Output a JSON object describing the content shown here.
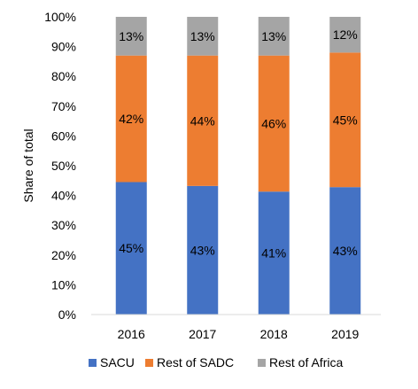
{
  "chart_data": {
    "type": "bar",
    "stacked": true,
    "categories": [
      "2016",
      "2017",
      "2018",
      "2019"
    ],
    "series": [
      {
        "name": "SACU",
        "values": [
          44.5,
          43.2,
          41.3,
          42.8
        ],
        "labels": [
          "45%",
          "43%",
          "41%",
          "43%"
        ],
        "color": "#4472C4"
      },
      {
        "name": "Rest of SADC",
        "values": [
          42.5,
          43.8,
          45.7,
          45.2
        ],
        "labels": [
          "42%",
          "44%",
          "46%",
          "45%"
        ],
        "color": "#ED7D31"
      },
      {
        "name": "Rest of Africa",
        "values": [
          13,
          13,
          13,
          12
        ],
        "labels": [
          "13%",
          "13%",
          "13%",
          "12%"
        ],
        "color": "#A5A5A5"
      }
    ],
    "xlabel": "",
    "ylabel": "Share of total",
    "ylim": [
      0,
      100
    ],
    "y_ticks": [
      "0%",
      "10%",
      "20%",
      "30%",
      "40%",
      "50%",
      "60%",
      "70%",
      "80%",
      "90%",
      "100%"
    ],
    "grid": false,
    "legend_position": "bottom"
  }
}
